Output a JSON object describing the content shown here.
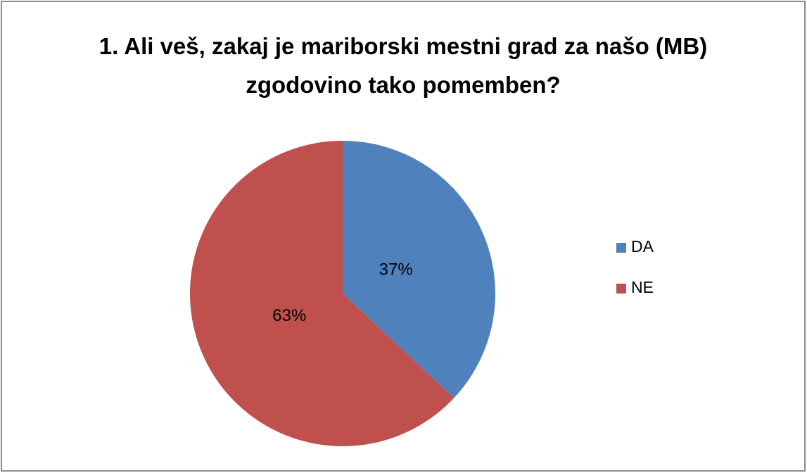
{
  "chart_data": {
    "type": "pie",
    "title": "1. Ali veš, zakaj je mariborski mestni grad za našo (MB) zgodovino tako pomemben?",
    "categories": [
      "DA",
      "NE"
    ],
    "values": [
      37,
      63
    ],
    "value_labels": [
      "37%",
      "63%"
    ],
    "colors": [
      "#4f81bd",
      "#c0504d"
    ],
    "legend": "right"
  }
}
